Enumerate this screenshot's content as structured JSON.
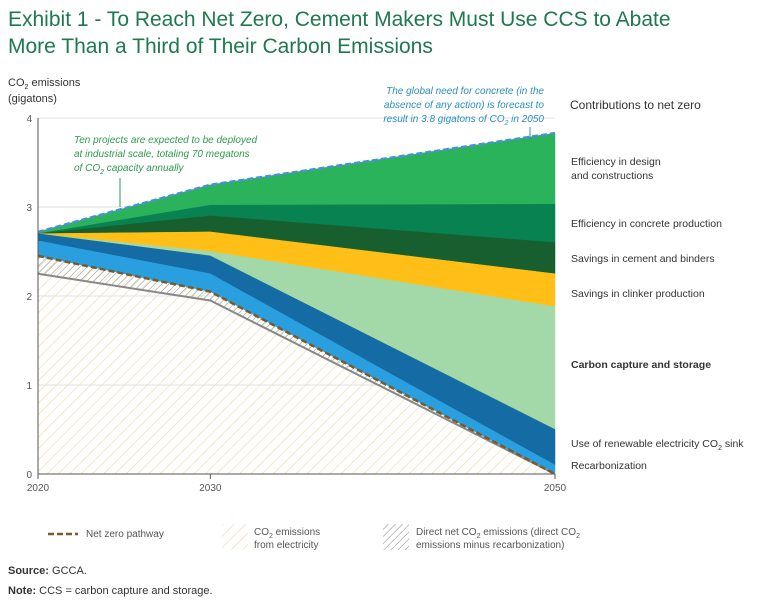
{
  "header": {
    "title_line1": "Exhibit 1 - To Reach Net Zero, Cement Makers Must Use CCS to Abate",
    "title_line2": "More Than a Third of Their Carbon Emissions"
  },
  "chart_data": {
    "type": "area",
    "ylabel_line1": "CO2 emissions",
    "ylabel_line2": "(gigatons)",
    "x": [
      2020,
      2030,
      2050
    ],
    "xlim": [
      2020,
      2050
    ],
    "ylim": [
      0,
      4
    ],
    "yticks": [
      0,
      1,
      2,
      3,
      4
    ],
    "xticks": [
      2020,
      2030,
      2050
    ],
    "legend_title": "Contributions to net zero",
    "boundaries": {
      "direct_net": [
        2.25,
        1.95,
        0.0
      ],
      "net_zero_pathway": [
        2.45,
        2.05,
        0.0
      ],
      "electricity_top": [
        2.45,
        2.05,
        0.0
      ],
      "recarbonization_top": [
        2.62,
        2.25,
        0.1
      ],
      "renewable_top": [
        2.7,
        2.45,
        0.5
      ],
      "ccs_top": [
        2.7,
        2.5,
        1.88
      ],
      "clinker_top": [
        2.7,
        2.72,
        2.25
      ],
      "cement_top": [
        2.7,
        2.9,
        2.6
      ],
      "concrete_top": [
        2.7,
        3.02,
        3.03
      ],
      "design_top": [
        2.72,
        3.25,
        3.83
      ]
    },
    "series": [
      {
        "name": "Efficiency in design and constructions",
        "color": "#2bb35b"
      },
      {
        "name": "Efficiency in concrete production",
        "color": "#078250"
      },
      {
        "name": "Savings in cement and binders",
        "color": "#175f2f"
      },
      {
        "name": "Savings in clinker production",
        "color": "#ffbf17"
      },
      {
        "name": "Carbon capture and storage",
        "color": "#a3d9a8"
      },
      {
        "name": "Use of renewable electricity CO2 sink",
        "color": "#156ba3"
      },
      {
        "name": "Recarbonization",
        "color": "#2a9fdf"
      }
    ],
    "legend_labels": {
      "design_1": "Efficiency in design",
      "design_2": "and constructions",
      "concrete": "Efficiency in concrete production",
      "cement": "Savings in cement and binders",
      "clinker": "Savings in clinker production",
      "ccs": "Carbon capture and storage",
      "renewable": "Use of renewable electricity CO2 sink",
      "recarbonization": "Recarbonization"
    },
    "annotations": {
      "projects_1": "Ten projects are expected to be deployed",
      "projects_2": "at industrial scale, totaling 70 megatons",
      "projects_3": "of CO2 capacity annually",
      "global_1": "The global need for concrete (in the",
      "global_2": "absence of any action) is forecast to",
      "global_3": "result in 3.8 gigatons of CO2 in 2050"
    },
    "bottom_legend": {
      "net_zero": "Net zero pathway",
      "electricity_1": "CO2 emissions",
      "electricity_2": "from electricity",
      "direct_1": "Direct net CO2 emissions (direct CO2",
      "direct_2": "emissions minus recarbonization)"
    },
    "colors": {
      "electricity_hatch": "#e8d9a8",
      "direct_hatch": "#888888",
      "net_zero_line": "#7a5a2a",
      "direct_line": "#888888",
      "top_line": "#4a90d9",
      "annotation_green": "#2e9b4e",
      "annotation_blue": "#2a8fbf"
    }
  },
  "footer": {
    "source_label": "Source:",
    "source_text": "GCCA.",
    "note_label": "Note:",
    "note_text": "CCS = carbon capture and storage."
  }
}
